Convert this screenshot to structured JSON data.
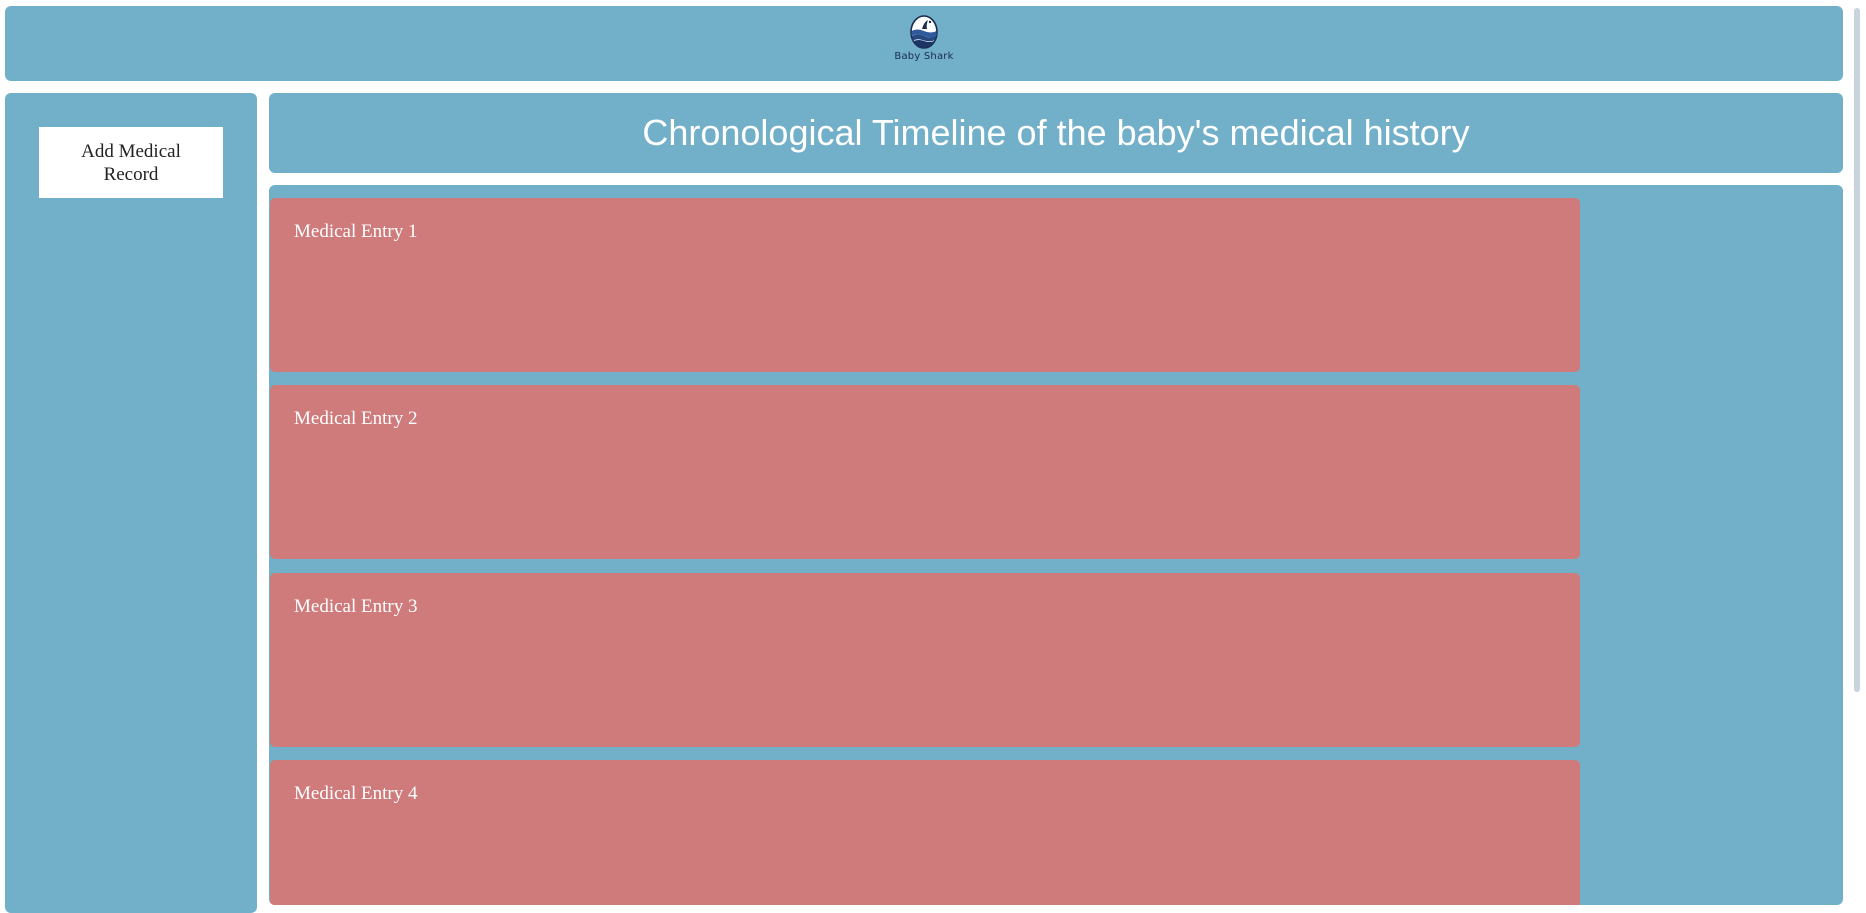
{
  "header": {
    "logo_icon": "shark-wave-egg-icon",
    "logo_text": "Baby Shark"
  },
  "sidebar": {
    "add_button_label": "Add Medical Record"
  },
  "main": {
    "title": "Chronological Timeline of the baby's medical history",
    "entries": [
      {
        "label": "Medical Entry 1"
      },
      {
        "label": "Medical Entry 2"
      },
      {
        "label": "Medical Entry 3"
      },
      {
        "label": "Medical Entry 4"
      }
    ]
  },
  "colors": {
    "panel": "#72afc8",
    "entry_card": "#cf7b7c",
    "text_light": "#ffffff"
  }
}
